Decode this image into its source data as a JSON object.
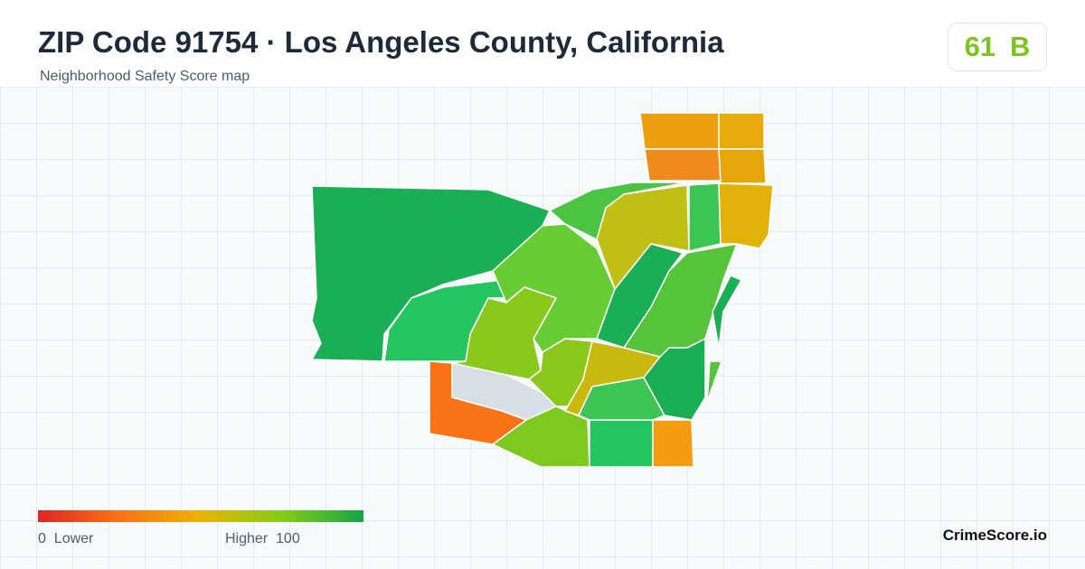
{
  "header": {
    "title": "ZIP Code 91754 · Los Angeles County, California",
    "subtitle": "Neighborhood Safety Score map"
  },
  "badge": {
    "score": 61,
    "grade": "B"
  },
  "legend": {
    "min": 0,
    "min_label": "Lower",
    "max_label": "Higher",
    "max": 100
  },
  "brand": "CrimeScore.io"
}
